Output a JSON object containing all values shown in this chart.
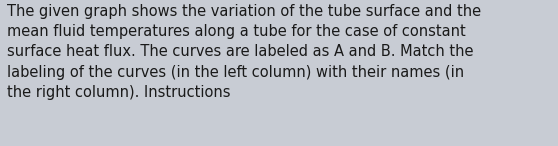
{
  "text_line1": "The given graph shows the variation of the tube surface and the",
  "text_line2": "mean fluid temperatures along a tube for the case of constant",
  "text_line3": "surface heat flux. The curves are labeled as A and B. Match the",
  "text_line4": "labeling of the curves (in the left column) with their names (in",
  "text_line5": "the right column). Instructions",
  "background_color": "#c8ccd4",
  "text_color": "#1a1a1a",
  "font_size": 10.5,
  "fig_width": 5.58,
  "fig_height": 1.46,
  "dpi": 100
}
